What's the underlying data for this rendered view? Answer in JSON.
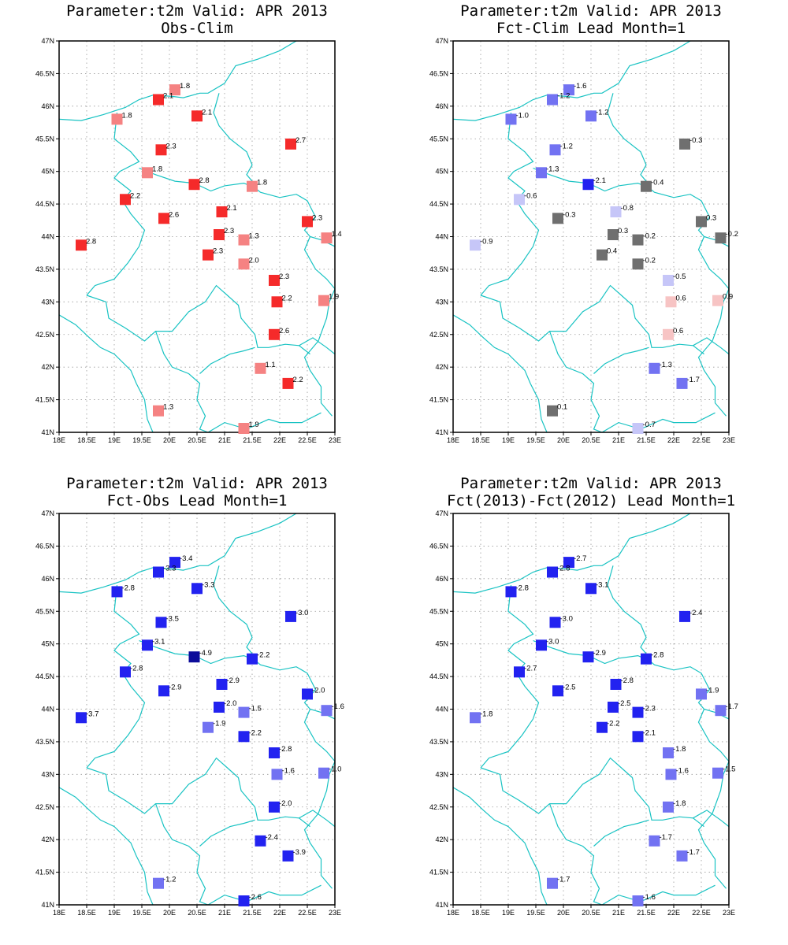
{
  "colors": {
    "coast": "#19c3c3",
    "grid": "#9a9a9a",
    "red": "#f52a2a",
    "pink": "#f58282",
    "lightpink": "#f7c4c4",
    "blue": "#2222f0",
    "navy": "#0c0c9a",
    "medblue": "#7272f2",
    "lightblue": "#c6c6f8",
    "gray": "#6f6f6f"
  },
  "axes": {
    "lon_labels": [
      "18E",
      "18.5E",
      "19E",
      "19.5E",
      "20E",
      "20.5E",
      "21E",
      "21.5E",
      "22E",
      "22.5E",
      "23E"
    ],
    "lat_labels": [
      "41N",
      "41.5N",
      "42N",
      "42.5N",
      "43N",
      "43.5N",
      "44N",
      "44.5N",
      "45N",
      "45.5N",
      "46N",
      "46.5N",
      "47N"
    ]
  },
  "stations": [
    {
      "lon": 20.1,
      "lat": 46.25
    },
    {
      "lon": 19.8,
      "lat": 46.1
    },
    {
      "lon": 20.5,
      "lat": 45.85
    },
    {
      "lon": 19.05,
      "lat": 45.8
    },
    {
      "lon": 22.2,
      "lat": 45.42
    },
    {
      "lon": 19.85,
      "lat": 45.33
    },
    {
      "lon": 19.6,
      "lat": 44.98
    },
    {
      "lon": 20.45,
      "lat": 44.8
    },
    {
      "lon": 21.5,
      "lat": 44.77
    },
    {
      "lon": 19.2,
      "lat": 44.57
    },
    {
      "lon": 20.95,
      "lat": 44.38
    },
    {
      "lon": 19.9,
      "lat": 44.28
    },
    {
      "lon": 22.5,
      "lat": 44.23
    },
    {
      "lon": 20.9,
      "lat": 44.03
    },
    {
      "lon": 22.85,
      "lat": 43.98
    },
    {
      "lon": 21.35,
      "lat": 43.95
    },
    {
      "lon": 18.4,
      "lat": 43.87
    },
    {
      "lon": 20.7,
      "lat": 43.72
    },
    {
      "lon": 21.35,
      "lat": 43.58
    },
    {
      "lon": 21.9,
      "lat": 43.33
    },
    {
      "lon": 21.95,
      "lat": 43.0
    },
    {
      "lon": 22.8,
      "lat": 43.02
    },
    {
      "lon": 21.9,
      "lat": 42.5
    },
    {
      "lon": 21.65,
      "lat": 41.98
    },
    {
      "lon": 22.15,
      "lat": 41.75
    },
    {
      "lon": 19.8,
      "lat": 41.33
    },
    {
      "lon": 21.35,
      "lat": 41.06
    }
  ],
  "panels": [
    {
      "title_line1": "Parameter:t2m Valid: APR 2013",
      "title_line2": "Obs-Clim",
      "labels": [
        "1.8",
        "2.1",
        "2.1",
        "1.8",
        "2.7",
        "2.3",
        "1.8",
        "2.8",
        "1.8",
        "2.2",
        "2.1",
        "2.6",
        "2.3",
        "2.3",
        "1.4",
        "1.3",
        "2.8",
        "2.3",
        "2.0",
        "2.3",
        "2.2",
        "1.9",
        "2.6",
        "1.1",
        "2.2",
        "1.3",
        "1.9"
      ],
      "colors": [
        "pink",
        "red",
        "red",
        "pink",
        "red",
        "red",
        "pink",
        "red",
        "pink",
        "red",
        "red",
        "red",
        "red",
        "red",
        "pink",
        "pink",
        "red",
        "red",
        "pink",
        "red",
        "red",
        "pink",
        "red",
        "pink",
        "red",
        "pink",
        "pink"
      ]
    },
    {
      "title_line1": "Parameter:t2m Valid: APR 2013",
      "title_line2": "Fct-Clim Lead Month=1",
      "labels": [
        "-1.6",
        "-1.2",
        "-1.2",
        "-1.0",
        "-0.3",
        "-1.2",
        "-1.3",
        "-2.1",
        "-0.4",
        "-0.6",
        "-0.8",
        "-0.3",
        "0.3",
        "0.3",
        "-0.2",
        "-0.2",
        "-0.9",
        "0.4",
        "-0.2",
        "-0.5",
        "0.6",
        "0.9",
        "0.6",
        "-1.3",
        "-1.7",
        "0.1",
        "-0.7"
      ],
      "colors": [
        "medblue",
        "medblue",
        "medblue",
        "medblue",
        "gray",
        "medblue",
        "medblue",
        "blue",
        "gray",
        "lightblue",
        "lightblue",
        "gray",
        "gray",
        "gray",
        "gray",
        "gray",
        "lightblue",
        "gray",
        "gray",
        "lightblue",
        "lightpink",
        "lightpink",
        "lightpink",
        "medblue",
        "medblue",
        "gray",
        "lightblue"
      ]
    },
    {
      "title_line1": "Parameter:t2m Valid: APR 2013",
      "title_line2": "Fct-Obs Lead Month=1",
      "labels": [
        "-3.4",
        "-3.3",
        "-3.3",
        "-2.8",
        "-3.0",
        "-3.5",
        "-3.1",
        "-4.9",
        "-2.2",
        "-2.8",
        "-2.9",
        "-2.9",
        "-2.0",
        "-2.0",
        "-1.6",
        "-1.5",
        "-3.7",
        "-1.9",
        "-2.2",
        "-2.8",
        "-1.6",
        "-1.0",
        "-2.0",
        "-2.4",
        "-3.9",
        "-1.2",
        "-2.6"
      ],
      "colors": [
        "blue",
        "blue",
        "blue",
        "blue",
        "blue",
        "blue",
        "blue",
        "navy",
        "blue",
        "blue",
        "blue",
        "blue",
        "blue",
        "blue",
        "medblue",
        "medblue",
        "blue",
        "medblue",
        "blue",
        "blue",
        "medblue",
        "medblue",
        "blue",
        "blue",
        "blue",
        "medblue",
        "blue"
      ]
    },
    {
      "title_line1": "Parameter:t2m Valid: APR 2013",
      "title_line2": "Fct(2013)-Fct(2012) Lead Month=1",
      "labels": [
        "-2.7",
        "-2.8",
        "-3.1",
        "-2.8",
        "-2.4",
        "-3.0",
        "-3.0",
        "-2.9",
        "-2.8",
        "-2.7",
        "-2.8",
        "-2.5",
        "-1.9",
        "-2.5",
        "-1.7",
        "-2.3",
        "-1.8",
        "-2.2",
        "-2.1",
        "-1.8",
        "-1.6",
        "-1.5",
        "-1.8",
        "-1.7",
        "-1.7",
        "-1.7",
        "-1.6"
      ],
      "colors": [
        "blue",
        "blue",
        "blue",
        "blue",
        "blue",
        "blue",
        "blue",
        "blue",
        "blue",
        "blue",
        "blue",
        "blue",
        "medblue",
        "blue",
        "medblue",
        "blue",
        "medblue",
        "blue",
        "blue",
        "medblue",
        "medblue",
        "medblue",
        "medblue",
        "medblue",
        "medblue",
        "medblue",
        "medblue"
      ]
    }
  ]
}
